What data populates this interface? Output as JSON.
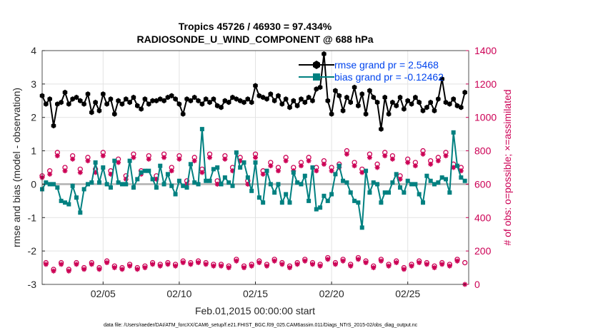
{
  "chart_data": {
    "type": "line",
    "title": [
      "Tropics 45726 / 46930 = 97.434%",
      "RADIOSONDE_U_WIND_COMPONENT @ 688 hPa"
    ],
    "xlabel": "Feb.01,2015 00:00:00 start",
    "ylabel_left": "rmse and bias (model - observation)",
    "ylabel_right": "# of obs: o=possible; ×=assimilated",
    "footer": "data file: /Users/raeder/DAI/ATM_forcXX/CAM6_setup/f.e21.FHIST_BGC.f09_025.CAM6assim.011/Diags_NTrS_2015-02/obs_diag_output.nc",
    "x_ticks": [
      {
        "value": 5,
        "label": "02/05"
      },
      {
        "value": 10,
        "label": "02/10"
      },
      {
        "value": 15,
        "label": "02/15"
      },
      {
        "value": 20,
        "label": "02/20"
      },
      {
        "value": 25,
        "label": "02/25"
      }
    ],
    "xlim": [
      1,
      29
    ],
    "ylim_left": [
      -3,
      4
    ],
    "yticks_left": [
      -3,
      -2,
      -1,
      0,
      1,
      2,
      3,
      4
    ],
    "ylim_right": [
      0,
      1400
    ],
    "yticks_right": [
      0,
      200,
      400,
      600,
      800,
      1000,
      1200,
      1400
    ],
    "grid": true,
    "legend": [
      {
        "label": "rmse grand pr = 2.5468",
        "color": "#000000"
      },
      {
        "label": "bias grand pr = -0.12462",
        "color": "#008080"
      }
    ],
    "colors": {
      "rmse": "#000000",
      "bias": "#008080",
      "obs": "#cc0055",
      "legend_text": "#0044ee",
      "zero_line": "#b0b0b0"
    },
    "x": [
      1.0,
      1.25,
      1.5,
      1.75,
      2.0,
      2.25,
      2.5,
      2.75,
      3.0,
      3.25,
      3.5,
      3.75,
      4.0,
      4.25,
      4.5,
      4.75,
      5.0,
      5.25,
      5.5,
      5.75,
      6.0,
      6.25,
      6.5,
      6.75,
      7.0,
      7.25,
      7.5,
      7.75,
      8.0,
      8.25,
      8.5,
      8.75,
      9.0,
      9.25,
      9.5,
      9.75,
      10.0,
      10.25,
      10.5,
      10.75,
      11.0,
      11.25,
      11.5,
      11.75,
      12.0,
      12.25,
      12.5,
      12.75,
      13.0,
      13.25,
      13.5,
      13.75,
      14.0,
      14.25,
      14.5,
      14.75,
      15.0,
      15.25,
      15.5,
      15.75,
      16.0,
      16.25,
      16.5,
      16.75,
      17.0,
      17.25,
      17.5,
      17.75,
      18.0,
      18.25,
      18.5,
      18.75,
      19.0,
      19.25,
      19.5,
      19.75,
      20.0,
      20.25,
      20.5,
      20.75,
      21.0,
      21.25,
      21.5,
      21.75,
      22.0,
      22.25,
      22.5,
      22.75,
      23.0,
      23.25,
      23.5,
      23.75,
      24.0,
      24.25,
      24.5,
      24.75,
      25.0,
      25.25,
      25.5,
      25.75,
      26.0,
      26.25,
      26.5,
      26.75,
      27.0,
      27.25,
      27.5,
      27.75,
      28.0,
      28.25,
      28.5,
      28.75
    ],
    "rmse": [
      2.65,
      2.4,
      2.55,
      1.75,
      2.4,
      2.45,
      2.75,
      2.4,
      2.55,
      2.6,
      2.5,
      2.4,
      2.7,
      2.15,
      2.45,
      2.2,
      2.7,
      2.4,
      2.55,
      2.1,
      2.5,
      2.4,
      2.55,
      2.45,
      2.6,
      2.35,
      2.25,
      2.55,
      2.4,
      2.5,
      2.5,
      2.55,
      2.5,
      2.6,
      2.65,
      2.55,
      2.4,
      2.1,
      2.55,
      2.5,
      2.6,
      2.5,
      2.4,
      2.55,
      2.45,
      2.55,
      2.35,
      2.3,
      2.5,
      2.45,
      2.6,
      2.55,
      2.5,
      2.45,
      2.55,
      2.45,
      2.95,
      2.65,
      2.6,
      2.55,
      2.7,
      2.5,
      2.65,
      2.4,
      2.55,
      2.3,
      2.5,
      2.35,
      2.55,
      2.45,
      2.6,
      2.5,
      2.85,
      2.9,
      3.9,
      2.5,
      2.1,
      2.8,
      2.65,
      2.2,
      2.6,
      2.45,
      2.9,
      2.35,
      2.7,
      2.1,
      2.8,
      2.6,
      2.45,
      1.65,
      2.6,
      2.1,
      2.45,
      2.35,
      2.6,
      2.25,
      2.5,
      2.4,
      2.6,
      2.45,
      2.2,
      2.3,
      2.45,
      2.2,
      2.55,
      3.15,
      2.45,
      2.4,
      2.55,
      2.35,
      2.3,
      2.75
    ],
    "bias": [
      -0.15,
      0.05,
      0.0,
      0.0,
      -0.1,
      -0.5,
      -0.55,
      -0.6,
      -0.05,
      -0.4,
      -0.85,
      -0.15,
      0.0,
      0.05,
      0.65,
      0.05,
      0.5,
      0.0,
      -0.1,
      0.7,
      0.05,
      0.0,
      0.0,
      0.7,
      -0.1,
      0.15,
      0.35,
      0.4,
      0.4,
      0.15,
      -0.1,
      0.55,
      0.0,
      0.3,
      -0.05,
      -0.3,
      0.1,
      -0.05,
      -0.1,
      0.6,
      0.05,
      0.0,
      1.65,
      0.1,
      0.1,
      0.45,
      0.5,
      0.0,
      0.2,
      0.05,
      -0.05,
      0.95,
      0.5,
      0.65,
      0.2,
      -0.2,
      0.65,
      -0.4,
      -0.55,
      0.4,
      0.0,
      -0.25,
      0.0,
      -0.55,
      -0.3,
      -0.55,
      0.35,
      0.05,
      0.0,
      0.25,
      -0.5,
      0.5,
      -0.75,
      -0.7,
      -0.35,
      -0.5,
      -0.3,
      0.3,
      0.55,
      0.1,
      0.05,
      -0.25,
      -0.5,
      -0.55,
      -1.3,
      0.4,
      -0.25,
      0.05,
      0.0,
      -0.55,
      -0.25,
      -0.25,
      0.05,
      0.3,
      -0.1,
      -0.25,
      0.1,
      0.0,
      0.0,
      -0.3,
      -0.55,
      0.25,
      0.1,
      0.0,
      0.05,
      0.2,
      0.15,
      -0.25,
      1.55,
      0.55,
      0.2,
      0.1
    ],
    "obs_possible": [
      650,
      130,
      680,
      90,
      790,
      130,
      700,
      90,
      770,
      130,
      690,
      100,
      760,
      130,
      690,
      100,
      790,
      140,
      680,
      110,
      750,
      100,
      650,
      120,
      780,
      100,
      680,
      110,
      770,
      130,
      650,
      120,
      780,
      130,
      700,
      120,
      770,
      140,
      620,
      130,
      760,
      140,
      690,
      130,
      780,
      120,
      620,
      120,
      770,
      110,
      700,
      150,
      760,
      110,
      620,
      120,
      780,
      140,
      680,
      120,
      730,
      150,
      700,
      130,
      760,
      110,
      700,
      130,
      730,
      150,
      760,
      130,
      700,
      120,
      740,
      160,
      700,
      130,
      720,
      150,
      800,
      120,
      730,
      160,
      690,
      140,
      780,
      110,
      720,
      150,
      790,
      120,
      770,
      140,
      650,
      100,
      750,
      120,
      730,
      140,
      800,
      130,
      740,
      110,
      760,
      130,
      790,
      120,
      720,
      150,
      700,
      130
    ],
    "obs_assimilated": [
      640,
      120,
      660,
      80,
      770,
      120,
      680,
      80,
      750,
      120,
      670,
      90,
      740,
      120,
      670,
      90,
      770,
      130,
      660,
      100,
      730,
      90,
      630,
      110,
      760,
      90,
      660,
      100,
      750,
      120,
      630,
      110,
      760,
      120,
      680,
      110,
      750,
      130,
      600,
      120,
      740,
      130,
      670,
      120,
      760,
      110,
      600,
      110,
      750,
      100,
      680,
      140,
      740,
      100,
      600,
      110,
      760,
      130,
      660,
      110,
      710,
      140,
      680,
      120,
      740,
      100,
      680,
      120,
      710,
      140,
      740,
      120,
      680,
      110,
      720,
      150,
      680,
      120,
      700,
      140,
      780,
      110,
      710,
      150,
      670,
      130,
      760,
      100,
      700,
      140,
      770,
      110,
      750,
      130,
      630,
      90,
      730,
      110,
      710,
      130,
      780,
      120,
      720,
      100,
      740,
      120,
      770,
      110,
      700,
      140,
      680,
      0
    ]
  }
}
